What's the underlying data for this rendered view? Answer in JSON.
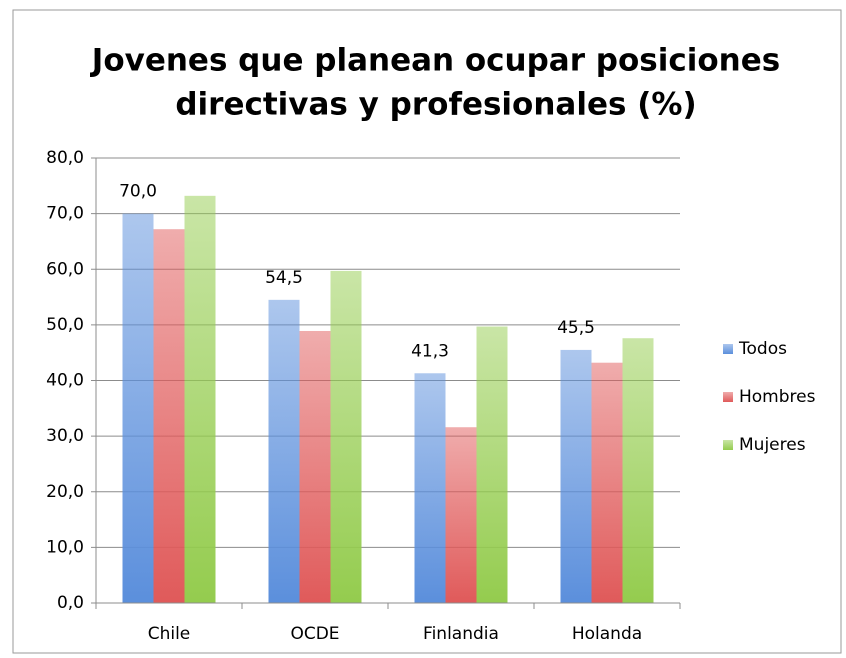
{
  "chart_data": {
    "type": "bar",
    "title": [
      "Jovenes que planean ocupar posiciones",
      "directivas y profesionales (%)"
    ],
    "categories": [
      "Chile",
      "OCDE",
      "Finlandia",
      "Holanda"
    ],
    "series": [
      {
        "name": "Todos",
        "color": "#5b8fdc",
        "values": [
          70.0,
          54.5,
          41.3,
          45.5
        ],
        "value_labels": [
          "70,0",
          "54,5",
          "41,3",
          "45,5"
        ]
      },
      {
        "name": "Hombres",
        "color": "#e05a5a",
        "values": [
          67.2,
          48.9,
          31.6,
          43.2
        ]
      },
      {
        "name": "Mujeres",
        "color": "#94cc4e",
        "values": [
          73.2,
          59.7,
          49.7,
          47.6
        ]
      }
    ],
    "ylim": [
      0,
      80
    ],
    "yticks": [
      {
        "value": 0,
        "label": "0,0"
      },
      {
        "value": 10,
        "label": "10,0"
      },
      {
        "value": 20,
        "label": "20,0"
      },
      {
        "value": 30,
        "label": "30,0"
      },
      {
        "value": 40,
        "label": "40,0"
      },
      {
        "value": 50,
        "label": "50,0"
      },
      {
        "value": 60,
        "label": "60,0"
      },
      {
        "value": 70,
        "label": "70,0"
      },
      {
        "value": 80,
        "label": "80,0"
      }
    ],
    "grid": true,
    "legend": "right"
  }
}
